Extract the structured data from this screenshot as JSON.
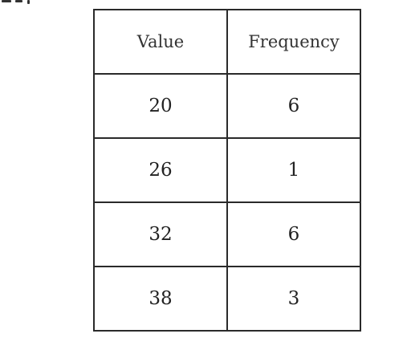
{
  "table": {
    "headers": [
      "Value",
      "Frequency"
    ],
    "rows": [
      [
        "20",
        "6"
      ],
      [
        "26",
        "1"
      ],
      [
        "32",
        "6"
      ],
      [
        "38",
        "3"
      ]
    ]
  }
}
